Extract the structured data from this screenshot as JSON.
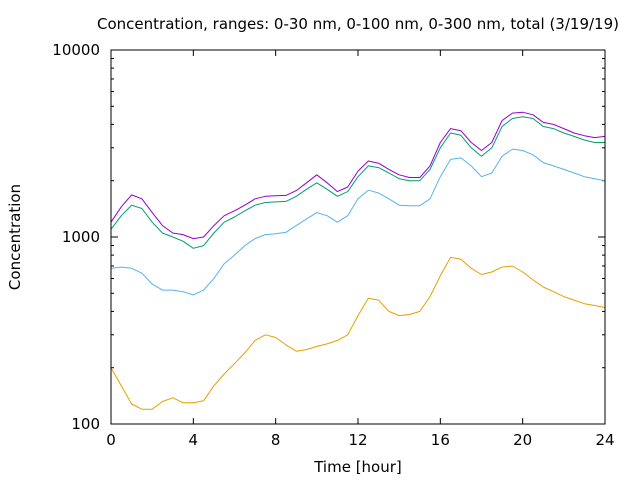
{
  "chart_data": {
    "type": "line",
    "title": "Concentration, ranges: 0-30 nm, 0-100 nm, 0-300 nm, total (3/19/19)",
    "xlabel": "Time [hour]",
    "ylabel": "Concentration",
    "xlim": [
      0,
      24
    ],
    "ylim": [
      100,
      10000
    ],
    "yscale": "log",
    "x_ticks": [
      0,
      4,
      8,
      12,
      16,
      20,
      24
    ],
    "x_tick_labels": [
      "0",
      "4",
      "8",
      "12",
      "16",
      "20",
      "24"
    ],
    "y_ticks": [
      100,
      1000,
      10000
    ],
    "y_tick_labels": [
      "100",
      "1000",
      "10000"
    ],
    "grid": false,
    "legend": "none",
    "x": [
      0,
      0.5,
      1,
      1.5,
      2,
      2.5,
      3,
      3.5,
      4,
      4.5,
      5,
      5.5,
      6,
      6.5,
      7,
      7.5,
      8,
      8.5,
      9,
      9.5,
      10,
      10.5,
      11,
      11.5,
      12,
      12.5,
      13,
      13.5,
      14,
      14.5,
      15,
      15.5,
      16,
      16.5,
      17,
      17.5,
      18,
      18.5,
      19,
      19.5,
      20,
      20.5,
      21,
      21.5,
      22,
      22.5,
      23,
      23.5,
      24
    ],
    "series": [
      {
        "color": "#e69f00",
        "values": [
          200,
          160,
          128,
          120,
          120,
          132,
          138,
          130,
          130,
          133,
          160,
          185,
          210,
          240,
          280,
          300,
          290,
          265,
          245,
          250,
          260,
          268,
          280,
          300,
          380,
          470,
          460,
          400,
          380,
          385,
          400,
          480,
          620,
          780,
          760,
          680,
          630,
          650,
          690,
          700,
          650,
          590,
          540,
          510,
          480,
          460,
          440,
          430,
          420
        ]
      },
      {
        "color": "#56b4e9",
        "values": [
          680,
          690,
          680,
          640,
          560,
          520,
          520,
          510,
          490,
          520,
          600,
          720,
          800,
          900,
          980,
          1030,
          1040,
          1060,
          1150,
          1250,
          1350,
          1300,
          1200,
          1300,
          1600,
          1780,
          1720,
          1600,
          1480,
          1470,
          1470,
          1600,
          2100,
          2600,
          2650,
          2400,
          2100,
          2200,
          2700,
          2950,
          2900,
          2750,
          2500,
          2400,
          2300,
          2200,
          2100,
          2050,
          2000
        ]
      },
      {
        "color": "#009e73",
        "values": [
          1100,
          1300,
          1480,
          1420,
          1200,
          1050,
          1000,
          950,
          870,
          900,
          1050,
          1200,
          1280,
          1380,
          1480,
          1530,
          1540,
          1550,
          1650,
          1800,
          1950,
          1800,
          1650,
          1750,
          2100,
          2400,
          2350,
          2200,
          2050,
          2000,
          2000,
          2300,
          3000,
          3600,
          3500,
          3000,
          2700,
          3000,
          3900,
          4300,
          4400,
          4300,
          3900,
          3800,
          3600,
          3450,
          3300,
          3200,
          3200
        ]
      },
      {
        "color": "#9400d3",
        "values": [
          1200,
          1450,
          1680,
          1600,
          1350,
          1150,
          1050,
          1030,
          980,
          1000,
          1150,
          1300,
          1380,
          1480,
          1600,
          1650,
          1660,
          1670,
          1770,
          1950,
          2150,
          1950,
          1750,
          1850,
          2250,
          2550,
          2480,
          2300,
          2150,
          2080,
          2080,
          2400,
          3200,
          3800,
          3700,
          3200,
          2900,
          3200,
          4200,
          4600,
          4650,
          4500,
          4100,
          4000,
          3800,
          3600,
          3480,
          3400,
          3450
        ]
      }
    ]
  }
}
